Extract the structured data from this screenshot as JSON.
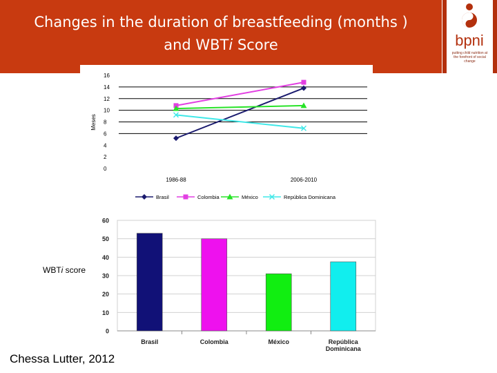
{
  "slide": {
    "title_line1": "Changes in the duration of breastfeeding (months )",
    "title_line2_prefix": "and WBT",
    "title_line2_italic": "i",
    "title_line2_suffix": " Score",
    "wbti_label_prefix": "WBT",
    "wbti_label_italic": "i",
    "wbti_label_suffix": " score",
    "citation": "Chessa Lutter, 2012",
    "logo_text": "bpni",
    "logo_tagline": "putting child nutrition at the forefront of social change"
  },
  "colors": {
    "banner": "#c83a10",
    "logo_red": "#b3300d"
  },
  "chart_data": [
    {
      "type": "line",
      "title": "",
      "ylabel": "Meses",
      "xlabel": "",
      "categories": [
        "1986-88",
        "2006-2010"
      ],
      "yticks": [
        0,
        2,
        4,
        6,
        8,
        10,
        12,
        14,
        16
      ],
      "ylim": [
        0,
        16
      ],
      "legend_position": "bottom",
      "series": [
        {
          "name": "Brasil",
          "values": [
            5.2,
            13.8
          ],
          "color": "#1a1a6e",
          "marker": "diamond"
        },
        {
          "name": "Colombia",
          "values": [
            10.8,
            14.8
          ],
          "color": "#e23fe2",
          "marker": "square"
        },
        {
          "name": "México",
          "values": [
            10.3,
            10.8
          ],
          "color": "#27e327",
          "marker": "triangle"
        },
        {
          "name": "República Dominicana",
          "values": [
            9.2,
            6.9
          ],
          "color": "#3fe8e8",
          "marker": "x"
        }
      ]
    },
    {
      "type": "bar",
      "title": "",
      "xlabel": "",
      "ylabel": "",
      "categories": [
        "Brasil",
        "Colombia",
        "México",
        "República Dominicana"
      ],
      "category_lines": [
        [
          "Brasil"
        ],
        [
          "Colombia"
        ],
        [
          "México"
        ],
        [
          "República",
          "Dominicana"
        ]
      ],
      "values": [
        53,
        50,
        31,
        37.5
      ],
      "colors": [
        "#111177",
        "#ee11ee",
        "#11ee11",
        "#11eeee"
      ],
      "yticks": [
        0,
        10,
        20,
        30,
        40,
        50,
        60
      ],
      "ylim": [
        0,
        60
      ]
    }
  ]
}
